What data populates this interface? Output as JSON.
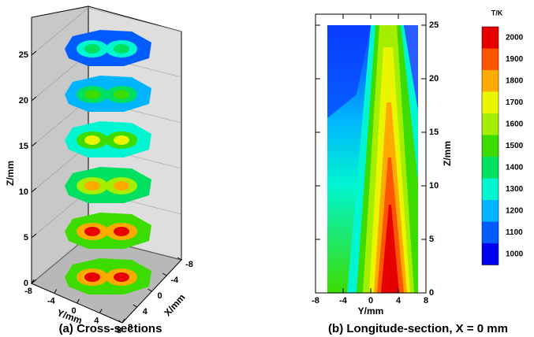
{
  "chart_data": [
    {
      "type": "contour3d",
      "caption": "(a) Cross-sections",
      "zlabel": "Z/mm",
      "ylabel": "Y/mm",
      "xlabel": "X/mm",
      "zlim": [
        0,
        25
      ],
      "zticks": [
        0,
        5,
        10,
        15,
        20,
        25
      ],
      "ylim": [
        -8,
        8
      ],
      "yticks": [
        -8,
        -4,
        0,
        4,
        8
      ],
      "xlim": [
        8,
        -8
      ],
      "xticks": [
        8,
        4,
        0,
        -4,
        -8
      ]
    },
    {
      "type": "contour",
      "caption": "(b) Longitude-section, X = 0 mm",
      "xlabel": "Y/mm",
      "ylabel": "Z/mm",
      "xlim": [
        -8,
        8
      ],
      "xticks": [
        -8,
        -4,
        0,
        4,
        8
      ],
      "ylim": [
        0,
        25
      ],
      "yticks": [
        0,
        5,
        10,
        15,
        20,
        25
      ],
      "colorbar": {
        "title": "T/K",
        "levels": [
          2000,
          1900,
          1800,
          1700,
          1600,
          1500,
          1400,
          1300,
          1200,
          1100,
          1000
        ],
        "colors": [
          "#e60000",
          "#ff5500",
          "#ffaa00",
          "#eaf500",
          "#a6ee00",
          "#3cdc00",
          "#00e060",
          "#00f5d0",
          "#00b4ff",
          "#005cff",
          "#0000f0"
        ]
      }
    }
  ]
}
